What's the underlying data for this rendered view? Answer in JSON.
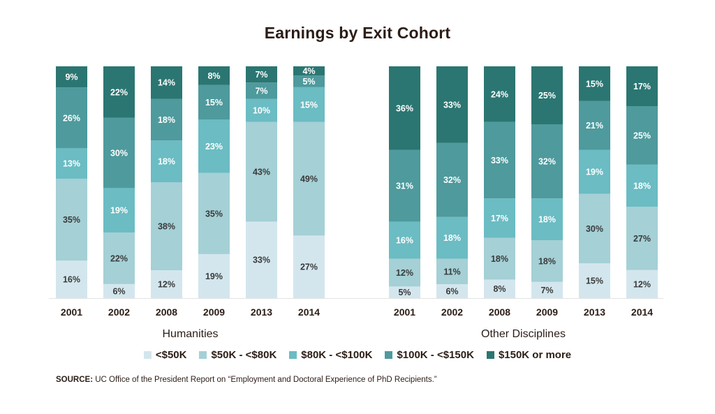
{
  "title": "Earnings by Exit Cohort",
  "colors": {
    "<$50K": "#d3e6ee",
    "$50K - <$80K": "#a4d0d6",
    "$80K - <$100K": "#6bbcc3",
    "$100K - <$150K": "#4e9a9d",
    "$150K or more": "#2b7672"
  },
  "chart_data": {
    "type": "bar",
    "stacked": true,
    "ylim": [
      0,
      100
    ],
    "series_order": [
      "<$50K",
      "$50K - <$80K",
      "$80K - <$100K",
      "$100K - <$150K",
      "$150K or more"
    ],
    "groups": [
      {
        "name": "Humanities",
        "categories": [
          "2001",
          "2002",
          "2008",
          "2009",
          "2013",
          "2014"
        ],
        "series": [
          {
            "name": "<$50K",
            "values": [
              16,
              6,
              12,
              19,
              33,
              27
            ]
          },
          {
            "name": "$50K - <$80K",
            "values": [
              35,
              22,
              38,
              35,
              43,
              49
            ]
          },
          {
            "name": "$80K - <$100K",
            "values": [
              13,
              19,
              18,
              23,
              10,
              15
            ]
          },
          {
            "name": "$100K - <$150K",
            "values": [
              26,
              30,
              18,
              15,
              7,
              5
            ]
          },
          {
            "name": "$150K or more",
            "values": [
              9,
              22,
              14,
              8,
              7,
              4
            ]
          }
        ]
      },
      {
        "name": "Other Disciplines",
        "categories": [
          "2001",
          "2002",
          "2008",
          "2009",
          "2013",
          "2014"
        ],
        "series": [
          {
            "name": "<$50K",
            "values": [
              5,
              6,
              8,
              7,
              15,
              12
            ]
          },
          {
            "name": "$50K - <$80K",
            "values": [
              12,
              11,
              18,
              18,
              30,
              27
            ]
          },
          {
            "name": "$80K - <$100K",
            "values": [
              16,
              18,
              17,
              18,
              19,
              18
            ]
          },
          {
            "name": "$100K - <$150K",
            "values": [
              31,
              32,
              33,
              32,
              21,
              25
            ]
          },
          {
            "name": "$150K or more",
            "values": [
              36,
              33,
              24,
              25,
              15,
              17
            ]
          }
        ]
      }
    ],
    "legend": [
      "<$50K",
      "$50K - <$80K",
      "$80K - <$100K",
      "$100K - <$150K",
      "$150K or more"
    ],
    "legend_position": "bottom"
  },
  "source": {
    "label": "SOURCE:",
    "text": " UC Office of the President Report on “Employment and Doctoral Experience of PhD Recipients.”"
  }
}
